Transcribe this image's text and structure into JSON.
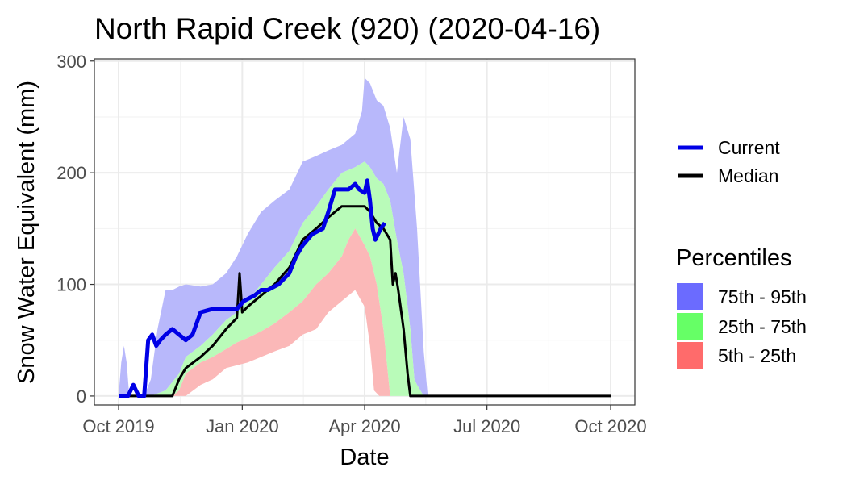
{
  "chart_data": {
    "type": "area",
    "title": "North Rapid Creek (920) (2020-04-16)",
    "xlabel": "Date",
    "ylabel": "Snow Water Equivalent (mm)",
    "x_range": [
      "2019-10-01",
      "2020-10-01"
    ],
    "ylim": [
      -8,
      302
    ],
    "x_ticks": [
      {
        "date": "2019-10-01",
        "label": "Oct 2019"
      },
      {
        "date": "2020-01-01",
        "label": "Jan 2020"
      },
      {
        "date": "2020-04-01",
        "label": "Apr 2020"
      },
      {
        "date": "2020-07-01",
        "label": "Jul 2020"
      },
      {
        "date": "2020-10-01",
        "label": "Oct 2020"
      }
    ],
    "y_ticks": [
      0,
      100,
      200,
      300
    ],
    "grid": true,
    "colors": {
      "band_75_95": "#b8b8fb",
      "band_25_75": "#b9fbb9",
      "band_5_25": "#fbb8b8",
      "current": "#0000e6",
      "median": "#000000",
      "legend_75_95": "#6b6bff",
      "legend_25_75": "#66ff66",
      "legend_5_25": "#ff6b6b"
    },
    "legend": {
      "placement": "right",
      "lines_title": "",
      "lines": [
        {
          "name": "Current",
          "color": "#0000e6"
        },
        {
          "name": "Median",
          "color": "#000000"
        }
      ],
      "percentiles_title": "Percentiles",
      "percentiles": [
        {
          "name": "75th - 95th",
          "color": "#6b6bff"
        },
        {
          "name": "25th - 75th",
          "color": "#66ff66"
        },
        {
          "name": "5th - 25th",
          "color": "#ff6b6b"
        }
      ]
    },
    "band_p95": {
      "x": [
        "2019-10-01",
        "2019-10-03",
        "2019-10-05",
        "2019-10-07",
        "2019-10-09",
        "2019-10-12",
        "2019-10-20",
        "2019-10-25",
        "2019-10-30",
        "2019-11-05",
        "2019-11-10",
        "2019-11-15",
        "2019-11-20",
        "2019-12-01",
        "2019-12-10",
        "2019-12-20",
        "2019-12-28",
        "2020-01-05",
        "2020-01-15",
        "2020-01-25",
        "2020-02-05",
        "2020-02-15",
        "2020-02-25",
        "2020-03-05",
        "2020-03-15",
        "2020-03-25",
        "2020-03-30",
        "2020-04-01",
        "2020-04-05",
        "2020-04-10",
        "2020-04-15",
        "2020-04-20",
        "2020-04-25",
        "2020-04-30",
        "2020-05-05",
        "2020-05-10",
        "2020-05-15",
        "2020-05-18",
        "2020-05-20",
        "2020-05-25",
        "2020-10-01"
      ],
      "y": [
        0,
        30,
        45,
        30,
        0,
        0,
        0,
        15,
        60,
        95,
        95,
        98,
        100,
        98,
        100,
        110,
        125,
        145,
        165,
        175,
        185,
        210,
        215,
        220,
        225,
        235,
        255,
        285,
        280,
        265,
        260,
        240,
        200,
        250,
        230,
        150,
        40,
        0,
        0,
        0,
        0
      ]
    },
    "band_p75": {
      "x": [
        "2019-10-01",
        "2019-10-25",
        "2019-11-05",
        "2019-11-15",
        "2019-11-20",
        "2019-12-01",
        "2019-12-10",
        "2019-12-20",
        "2019-12-28",
        "2020-01-05",
        "2020-01-15",
        "2020-01-25",
        "2020-02-05",
        "2020-02-15",
        "2020-02-25",
        "2020-03-05",
        "2020-03-15",
        "2020-03-25",
        "2020-04-01",
        "2020-04-05",
        "2020-04-10",
        "2020-04-15",
        "2020-04-20",
        "2020-04-25",
        "2020-04-30",
        "2020-05-05",
        "2020-05-08",
        "2020-05-10",
        "2020-05-15",
        "2020-05-20",
        "2020-10-01"
      ],
      "y": [
        0,
        0,
        5,
        20,
        35,
        45,
        55,
        68,
        75,
        85,
        100,
        115,
        130,
        155,
        170,
        185,
        200,
        205,
        210,
        205,
        195,
        190,
        175,
        140,
        110,
        60,
        15,
        10,
        0,
        0,
        0
      ]
    },
    "band_p25": {
      "x": [
        "2019-10-01",
        "2019-11-10",
        "2019-11-15",
        "2019-11-20",
        "2019-12-01",
        "2019-12-10",
        "2019-12-20",
        "2019-12-28",
        "2020-01-05",
        "2020-01-15",
        "2020-01-25",
        "2020-02-05",
        "2020-02-15",
        "2020-02-25",
        "2020-03-05",
        "2020-03-15",
        "2020-03-20",
        "2020-03-25",
        "2020-04-01",
        "2020-04-05",
        "2020-04-10",
        "2020-04-15",
        "2020-04-20",
        "2020-04-25",
        "2020-10-01"
      ],
      "y": [
        0,
        0,
        5,
        20,
        30,
        35,
        42,
        48,
        52,
        58,
        65,
        75,
        85,
        100,
        110,
        125,
        140,
        150,
        135,
        125,
        100,
        60,
        0,
        0,
        0
      ]
    },
    "band_p5": {
      "x": [
        "2019-10-01",
        "2019-11-15",
        "2019-11-20",
        "2019-12-01",
        "2019-12-10",
        "2019-12-20",
        "2020-01-05",
        "2020-01-15",
        "2020-01-25",
        "2020-02-05",
        "2020-02-15",
        "2020-02-25",
        "2020-03-05",
        "2020-03-15",
        "2020-03-25",
        "2020-04-01",
        "2020-04-05",
        "2020-04-08",
        "2020-04-12",
        "2020-10-01"
      ],
      "y": [
        0,
        0,
        0,
        10,
        15,
        25,
        30,
        35,
        40,
        45,
        55,
        60,
        75,
        85,
        95,
        80,
        45,
        5,
        0,
        0
      ]
    },
    "series": [
      {
        "name": "Current",
        "x": [
          "2019-10-01",
          "2019-10-08",
          "2019-10-12",
          "2019-10-16",
          "2019-10-20",
          "2019-10-23",
          "2019-10-26",
          "2019-10-29",
          "2019-11-01",
          "2019-11-05",
          "2019-11-10",
          "2019-11-15",
          "2019-11-20",
          "2019-11-25",
          "2019-12-01",
          "2019-12-10",
          "2019-12-20",
          "2019-12-28",
          "2020-01-02",
          "2020-01-10",
          "2020-01-15",
          "2020-01-20",
          "2020-01-28",
          "2020-02-05",
          "2020-02-10",
          "2020-02-15",
          "2020-02-22",
          "2020-03-01",
          "2020-03-05",
          "2020-03-10",
          "2020-03-15",
          "2020-03-20",
          "2020-03-25",
          "2020-03-28",
          "2020-04-01",
          "2020-04-03",
          "2020-04-05",
          "2020-04-07",
          "2020-04-09",
          "2020-04-11",
          "2020-04-13",
          "2020-04-16"
        ],
        "y": [
          0,
          0,
          10,
          0,
          0,
          50,
          55,
          45,
          50,
          55,
          60,
          55,
          50,
          55,
          75,
          78,
          78,
          78,
          85,
          90,
          95,
          95,
          100,
          110,
          125,
          135,
          145,
          150,
          165,
          185,
          185,
          185,
          190,
          185,
          182,
          193,
          175,
          150,
          140,
          145,
          150,
          155
        ]
      },
      {
        "name": "Median",
        "x": [
          "2019-10-01",
          "2019-11-10",
          "2019-11-15",
          "2019-11-20",
          "2019-12-01",
          "2019-12-10",
          "2019-12-20",
          "2019-12-28",
          "2019-12-30",
          "2020-01-01",
          "2020-01-05",
          "2020-01-15",
          "2020-01-25",
          "2020-02-05",
          "2020-02-15",
          "2020-02-25",
          "2020-03-05",
          "2020-03-15",
          "2020-03-25",
          "2020-04-01",
          "2020-04-05",
          "2020-04-10",
          "2020-04-15",
          "2020-04-20",
          "2020-04-22",
          "2020-04-24",
          "2020-04-26",
          "2020-04-30",
          "2020-05-03",
          "2020-05-05",
          "2020-10-01"
        ],
        "y": [
          0,
          0,
          15,
          25,
          35,
          45,
          60,
          70,
          110,
          75,
          80,
          90,
          100,
          115,
          140,
          150,
          160,
          170,
          170,
          170,
          165,
          155,
          150,
          140,
          100,
          110,
          95,
          60,
          20,
          0,
          0
        ]
      }
    ]
  }
}
